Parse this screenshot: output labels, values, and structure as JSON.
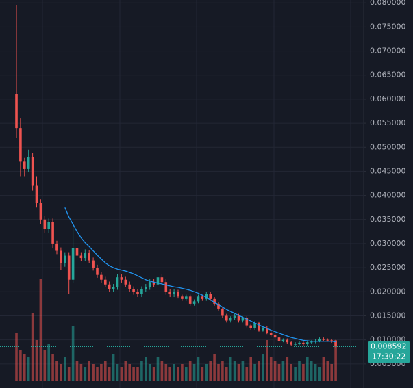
{
  "chart_data": {
    "type": "candlestick",
    "up_color": "#26a69a",
    "down_color": "#ef5350",
    "ma_color": "#2196f3",
    "grid": true,
    "ylim": [
      0,
      0.0806
    ],
    "yticks": [
      {
        "value": 0.005,
        "label": "0.005000"
      },
      {
        "value": 0.01,
        "label": "0.010000"
      },
      {
        "value": 0.015,
        "label": "0.015000"
      },
      {
        "value": 0.02,
        "label": "0.020000"
      },
      {
        "value": 0.025,
        "label": "0.025000"
      },
      {
        "value": 0.03,
        "label": "0.030000"
      },
      {
        "value": 0.035,
        "label": "0.035000"
      },
      {
        "value": 0.04,
        "label": "0.040000"
      },
      {
        "value": 0.045,
        "label": "0.045000"
      },
      {
        "value": 0.05,
        "label": "0.050000"
      },
      {
        "value": 0.055,
        "label": "0.055000"
      },
      {
        "value": 0.06,
        "label": "0.060000"
      },
      {
        "value": 0.065,
        "label": "0.065000"
      },
      {
        "value": 0.07,
        "label": "0.070000"
      },
      {
        "value": 0.075,
        "label": "0.075000"
      },
      {
        "value": 0.08,
        "label": "0.080000"
      }
    ],
    "last_price": 0.008592,
    "last_time": "17:30:22",
    "open": [
      0.061,
      0.054,
      0.047,
      0.0455,
      0.048,
      0.042,
      0.0385,
      0.035,
      0.033,
      0.0345,
      0.03,
      0.0285,
      0.026,
      0.0275,
      0.0225,
      0.029,
      0.0275,
      0.027,
      0.028,
      0.0265,
      0.025,
      0.0235,
      0.0225,
      0.0215,
      0.0205,
      0.021,
      0.023,
      0.0225,
      0.0215,
      0.0205,
      0.02,
      0.0195,
      0.0205,
      0.021,
      0.022,
      0.0215,
      0.023,
      0.022,
      0.02,
      0.0195,
      0.02,
      0.019,
      0.0185,
      0.019,
      0.0175,
      0.018,
      0.019,
      0.0185,
      0.0195,
      0.0185,
      0.0175,
      0.0165,
      0.015,
      0.014,
      0.0145,
      0.015,
      0.014,
      0.0145,
      0.013,
      0.0125,
      0.0135,
      0.012,
      0.0125,
      0.0115,
      0.011,
      0.0105,
      0.0098,
      0.01,
      0.0095,
      0.009,
      0.0092,
      0.0094,
      0.0091,
      0.0095,
      0.0096,
      0.0098,
      0.0102,
      0.01,
      0.0099,
      0.0097
    ],
    "high": [
      0.0795,
      0.056,
      0.0478,
      0.0495,
      0.0488,
      0.044,
      0.0392,
      0.0358,
      0.0352,
      0.0352,
      0.0306,
      0.0292,
      0.0282,
      0.0282,
      0.0335,
      0.0298,
      0.0282,
      0.0288,
      0.0286,
      0.0271,
      0.0256,
      0.0241,
      0.0231,
      0.0221,
      0.0216,
      0.0236,
      0.0236,
      0.0231,
      0.0221,
      0.0211,
      0.0206,
      0.0211,
      0.0216,
      0.0226,
      0.0226,
      0.0238,
      0.0236,
      0.0226,
      0.0206,
      0.0206,
      0.0204,
      0.0194,
      0.0194,
      0.0194,
      0.0184,
      0.0194,
      0.0194,
      0.02,
      0.0199,
      0.0189,
      0.0179,
      0.0169,
      0.0154,
      0.0149,
      0.0154,
      0.0154,
      0.0149,
      0.0149,
      0.0134,
      0.0139,
      0.0138,
      0.0128,
      0.0128,
      0.0118,
      0.0113,
      0.0108,
      0.0103,
      0.0103,
      0.0098,
      0.0095,
      0.0097,
      0.0097,
      0.0098,
      0.0099,
      0.0101,
      0.0105,
      0.0105,
      0.0103,
      0.0102,
      0.01
    ],
    "low": [
      0.052,
      0.044,
      0.044,
      0.0448,
      0.041,
      0.0375,
      0.034,
      0.0322,
      0.0322,
      0.029,
      0.0278,
      0.0245,
      0.0252,
      0.0195,
      0.0218,
      0.0268,
      0.0264,
      0.0264,
      0.0259,
      0.0244,
      0.0229,
      0.0219,
      0.0209,
      0.0199,
      0.0199,
      0.0204,
      0.0219,
      0.0209,
      0.0199,
      0.0194,
      0.0189,
      0.0189,
      0.0199,
      0.0204,
      0.0209,
      0.0209,
      0.0214,
      0.0194,
      0.0189,
      0.0189,
      0.0186,
      0.0181,
      0.0181,
      0.0171,
      0.0171,
      0.0176,
      0.0181,
      0.0181,
      0.0181,
      0.0171,
      0.0161,
      0.0146,
      0.0136,
      0.0136,
      0.0141,
      0.0136,
      0.0136,
      0.0126,
      0.0121,
      0.0121,
      0.0117,
      0.0117,
      0.0112,
      0.0107,
      0.0102,
      0.0095,
      0.0095,
      0.0092,
      0.0087,
      0.0087,
      0.0089,
      0.0088,
      0.0088,
      0.0092,
      0.0093,
      0.0095,
      0.0097,
      0.0096,
      0.0094,
      0.0084
    ],
    "close": [
      0.054,
      0.047,
      0.0455,
      0.048,
      0.042,
      0.0385,
      0.035,
      0.033,
      0.0345,
      0.03,
      0.0285,
      0.026,
      0.0275,
      0.0225,
      0.029,
      0.0275,
      0.027,
      0.028,
      0.0265,
      0.025,
      0.0235,
      0.0225,
      0.0215,
      0.0205,
      0.021,
      0.023,
      0.0225,
      0.0215,
      0.0205,
      0.02,
      0.0195,
      0.0205,
      0.021,
      0.022,
      0.0215,
      0.023,
      0.022,
      0.02,
      0.0195,
      0.02,
      0.019,
      0.0185,
      0.019,
      0.0175,
      0.018,
      0.019,
      0.0185,
      0.0195,
      0.0185,
      0.0175,
      0.0165,
      0.015,
      0.014,
      0.0145,
      0.015,
      0.014,
      0.0145,
      0.013,
      0.0125,
      0.0135,
      0.012,
      0.0125,
      0.0115,
      0.011,
      0.0105,
      0.0098,
      0.01,
      0.0095,
      0.009,
      0.0092,
      0.0094,
      0.0091,
      0.0095,
      0.0096,
      0.0098,
      0.0102,
      0.01,
      0.0099,
      0.0097,
      0.008592
    ],
    "volume": [
      70,
      45,
      40,
      35,
      100,
      60,
      150,
      45,
      55,
      40,
      30,
      25,
      35,
      20,
      80,
      30,
      25,
      20,
      30,
      25,
      20,
      25,
      30,
      20,
      40,
      25,
      20,
      30,
      25,
      20,
      20,
      30,
      35,
      25,
      20,
      35,
      30,
      25,
      20,
      25,
      20,
      25,
      20,
      30,
      25,
      35,
      20,
      25,
      30,
      40,
      25,
      30,
      20,
      35,
      30,
      25,
      30,
      20,
      35,
      25,
      30,
      40,
      60,
      35,
      30,
      25,
      30,
      35,
      25,
      20,
      30,
      25,
      35,
      30,
      25,
      20,
      35,
      30,
      25,
      60
    ],
    "ma": [
      null,
      null,
      null,
      null,
      null,
      null,
      null,
      null,
      null,
      null,
      null,
      null,
      0.0375,
      0.0355,
      0.034,
      0.0325,
      0.0312,
      0.0302,
      0.0294,
      0.0285,
      0.0276,
      0.0268,
      0.026,
      0.0254,
      0.025,
      0.0247,
      0.0245,
      0.0243,
      0.024,
      0.0237,
      0.0233,
      0.0229,
      0.0225,
      0.0222,
      0.022,
      0.0218,
      0.0216,
      0.0214,
      0.0212,
      0.021,
      0.0209,
      0.0207,
      0.0205,
      0.0203,
      0.02,
      0.0197,
      0.0193,
      0.0188,
      0.0183,
      0.0178,
      0.0173,
      0.0168,
      0.0163,
      0.0159,
      0.0155,
      0.0151,
      0.0147,
      0.0143,
      0.0139,
      0.0135,
      0.0131,
      0.0127,
      0.0124,
      0.012,
      0.0117,
      0.0114,
      0.0111,
      0.0108,
      0.0105,
      0.0103,
      0.0101,
      0.0099,
      0.0098,
      0.0097,
      0.0097,
      0.0097,
      0.0097,
      0.0097,
      0.0097,
      0.0096
    ]
  }
}
